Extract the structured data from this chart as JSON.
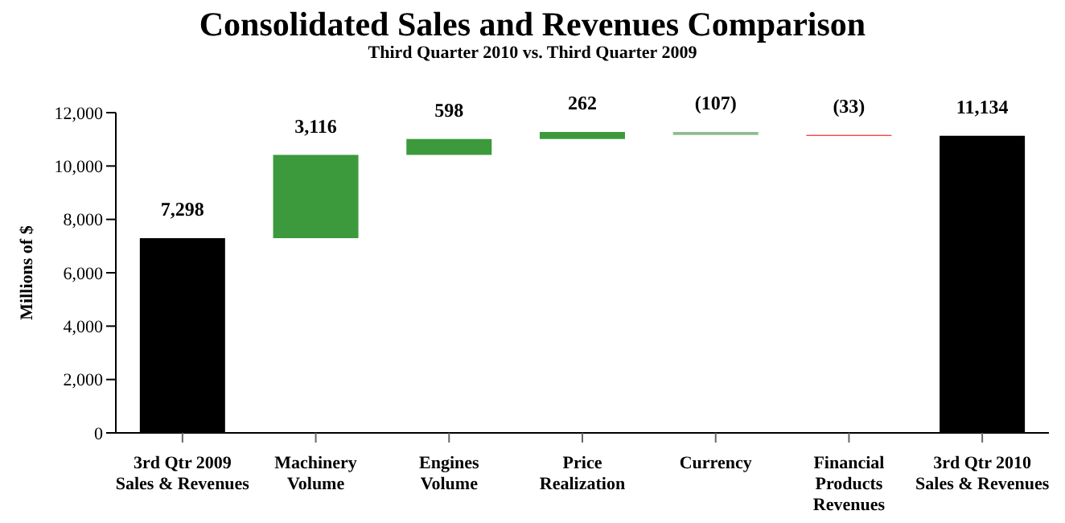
{
  "chart_data": {
    "type": "bar",
    "title": "Consolidated Sales and Revenues Comparison",
    "subtitle": "Third Quarter 2010 vs. Third Quarter 2009",
    "ylabel": "Millions of $",
    "categories": [
      "3rd Qtr 2009\nSales & Revenues",
      "Machinery\nVolume",
      "Engines\nVolume",
      "Price\nRealization",
      "Currency",
      "Financial\nProducts\nRevenues",
      "3rd Qtr 2010\nSales & Revenues"
    ],
    "values": [
      7298,
      3116,
      598,
      262,
      -107,
      -33,
      11134
    ],
    "base": [
      0,
      7298,
      10414,
      11012,
      11274,
      11167,
      0
    ],
    "value_labels": [
      "7,298",
      "3,116",
      "598",
      "262",
      "(107)",
      "(33)",
      "11,134"
    ],
    "colors": [
      "#000000",
      "#3c9a3c",
      "#3c9a3c",
      "#3c9a3c",
      "#8fbc8f",
      "#ff0000",
      "#000000"
    ],
    "ylim": [
      0,
      12000
    ],
    "yticks": [
      {
        "value": 0,
        "label": "0"
      },
      {
        "value": 2000,
        "label": "2,000"
      },
      {
        "value": 4000,
        "label": "4,000"
      },
      {
        "value": 6000,
        "label": "6,000"
      },
      {
        "value": 8000,
        "label": "8,000"
      },
      {
        "value": 10000,
        "label": "10,000"
      },
      {
        "value": 12000,
        "label": "12,000"
      }
    ]
  }
}
